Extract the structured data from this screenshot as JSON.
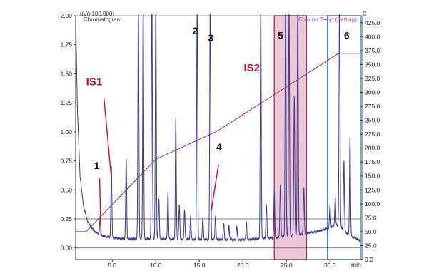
{
  "chart_data": {
    "type": "line",
    "header_left": "uV(x100,000)",
    "header_left_sub": "Chromatogram",
    "header_right": "Column Temp.(Setting)",
    "header_right_unit": "C",
    "xunit": "min",
    "xlim": [
      0.8,
      33.5
    ],
    "ylim": [
      -0.1,
      2.0
    ],
    "y2lim": [
      0.0,
      437.5
    ],
    "x_ticks": [
      {
        "v": 5,
        "label": "5.0"
      },
      {
        "v": 10,
        "label": "10.0"
      },
      {
        "v": 15,
        "label": "15.0"
      },
      {
        "v": 20,
        "label": "20.0"
      },
      {
        "v": 25,
        "label": "25.0"
      },
      {
        "v": 30,
        "label": "30.0"
      }
    ],
    "y_ticks": [
      {
        "v": 2.0,
        "label": "2.00"
      },
      {
        "v": 1.75,
        "label": "1.75"
      },
      {
        "v": 1.5,
        "label": "1.50"
      },
      {
        "v": 1.25,
        "label": "1.25"
      },
      {
        "v": 1.0,
        "label": "1.00"
      },
      {
        "v": 0.75,
        "label": "0.75"
      },
      {
        "v": 0.5,
        "label": "0.50"
      },
      {
        "v": 0.25,
        "label": "0.25"
      },
      {
        "v": 0.0,
        "label": "0.00"
      }
    ],
    "y2_ticks": [
      {
        "v": 425,
        "label": "425.0"
      },
      {
        "v": 400,
        "label": "400.0"
      },
      {
        "v": 375,
        "label": "375.0"
      },
      {
        "v": 350,
        "label": "350.0"
      },
      {
        "v": 325,
        "label": "325.0"
      },
      {
        "v": 300,
        "label": "300.0"
      },
      {
        "v": 275,
        "label": "275.0"
      },
      {
        "v": 250,
        "label": "250.0"
      },
      {
        "v": 225,
        "label": "225.0"
      },
      {
        "v": 200,
        "label": "200.0"
      },
      {
        "v": 175,
        "label": "175.0"
      },
      {
        "v": 150,
        "label": "150.0"
      },
      {
        "v": 125,
        "label": "125.0"
      },
      {
        "v": 100,
        "label": "100.0"
      },
      {
        "v": 75,
        "label": "75.0"
      },
      {
        "v": 50,
        "label": "50.0"
      },
      {
        "v": 25,
        "label": "25.0"
      },
      {
        "v": 0,
        "label": "0.0"
      }
    ],
    "hlines": [
      0.25,
      0.0
    ],
    "baseline": [
      [
        0.8,
        2.0
      ],
      [
        1.0,
        1.2
      ],
      [
        1.3,
        0.62
      ],
      [
        1.7,
        0.36
      ],
      [
        2.2,
        0.22
      ],
      [
        3.0,
        0.14
      ],
      [
        4.0,
        0.1
      ],
      [
        6.0,
        0.08
      ],
      [
        12.0,
        0.075
      ],
      [
        20.0,
        0.07
      ],
      [
        24.0,
        0.09
      ],
      [
        27.0,
        0.12
      ],
      [
        29.0,
        0.15
      ],
      [
        31.0,
        0.2
      ],
      [
        32.0,
        0.12
      ],
      [
        33.5,
        0.06
      ]
    ],
    "peaks": [
      {
        "t": 3.6,
        "h": 0.15
      },
      {
        "t": 4.9,
        "h": 0.62
      },
      {
        "t": 6.6,
        "h": 0.7
      },
      {
        "t": 8.0,
        "h": 2.1
      },
      {
        "t": 8.55,
        "h": 2.1
      },
      {
        "t": 9.55,
        "h": 2.1
      },
      {
        "t": 10.0,
        "h": 2.1
      },
      {
        "t": 10.35,
        "h": 0.35
      },
      {
        "t": 11.4,
        "h": 0.4
      },
      {
        "t": 12.3,
        "h": 1.05
      },
      {
        "t": 12.7,
        "h": 0.3
      },
      {
        "t": 13.3,
        "h": 0.25
      },
      {
        "t": 14.0,
        "h": 0.2
      },
      {
        "t": 14.75,
        "h": 2.1
      },
      {
        "t": 15.4,
        "h": 0.2
      },
      {
        "t": 16.25,
        "h": 2.1
      },
      {
        "t": 16.85,
        "h": 0.2
      },
      {
        "t": 17.8,
        "h": 0.15
      },
      {
        "t": 18.4,
        "h": 0.12
      },
      {
        "t": 19.3,
        "h": 0.12
      },
      {
        "t": 20.4,
        "h": 0.15
      },
      {
        "t": 22.05,
        "h": 2.1
      },
      {
        "t": 22.7,
        "h": 0.3
      },
      {
        "t": 23.6,
        "h": 0.4
      },
      {
        "t": 24.3,
        "h": 0.45
      },
      {
        "t": 24.9,
        "h": 2.1
      },
      {
        "t": 25.3,
        "h": 2.1
      },
      {
        "t": 25.9,
        "h": 1.2
      },
      {
        "t": 26.3,
        "h": 2.1
      },
      {
        "t": 27.0,
        "h": 0.4
      },
      {
        "t": 30.0,
        "h": 0.2
      },
      {
        "t": 30.6,
        "h": 0.25
      },
      {
        "t": 31.1,
        "h": 2.1
      },
      {
        "t": 31.6,
        "h": 0.6
      },
      {
        "t": 32.3,
        "h": 0.85
      }
    ],
    "temp_program": [
      [
        0.8,
        50
      ],
      [
        2.0,
        50
      ],
      [
        10.0,
        180
      ],
      [
        17.0,
        230
      ],
      [
        31.0,
        370
      ],
      [
        33.5,
        370
      ]
    ],
    "regions": [
      {
        "x0": 23.6,
        "x1": 27.3,
        "color": "#e8b6cb",
        "border": "#8e2c5c"
      },
      {
        "x0": 29.7,
        "x1": 34.0,
        "color": "none",
        "border": "#3a8fc0"
      }
    ],
    "annotations": [
      {
        "text": "IS1",
        "color": "red",
        "at": [
          2.0,
          1.4
        ],
        "tip": [
          4.85,
          0.64
        ],
        "from": [
          4.05,
          1.29
        ]
      },
      {
        "text": "IS2",
        "color": "red",
        "at": [
          20.1,
          1.52
        ]
      },
      {
        "text": "1",
        "color": "black",
        "at": [
          2.9,
          0.68
        ],
        "tip": [
          3.7,
          0.12
        ],
        "from": [
          3.55,
          0.6
        ]
      },
      {
        "text": "2",
        "color": "black",
        "at": [
          14.2,
          1.84
        ]
      },
      {
        "text": "3",
        "color": "black",
        "at": [
          16.0,
          1.78
        ]
      },
      {
        "text": "4",
        "color": "black",
        "at": [
          16.95,
          0.84
        ],
        "tip": [
          16.35,
          0.31
        ],
        "from": [
          17.2,
          0.72
        ]
      },
      {
        "text": "5",
        "color": "black",
        "at": [
          24.0,
          1.8
        ]
      },
      {
        "text": "6",
        "color": "black",
        "at": [
          31.6,
          1.8
        ]
      }
    ],
    "colors": {
      "signal": "#3b3a8c",
      "temp": "#8a2e6e",
      "grid": "#555555",
      "red": "#c8102e"
    }
  }
}
